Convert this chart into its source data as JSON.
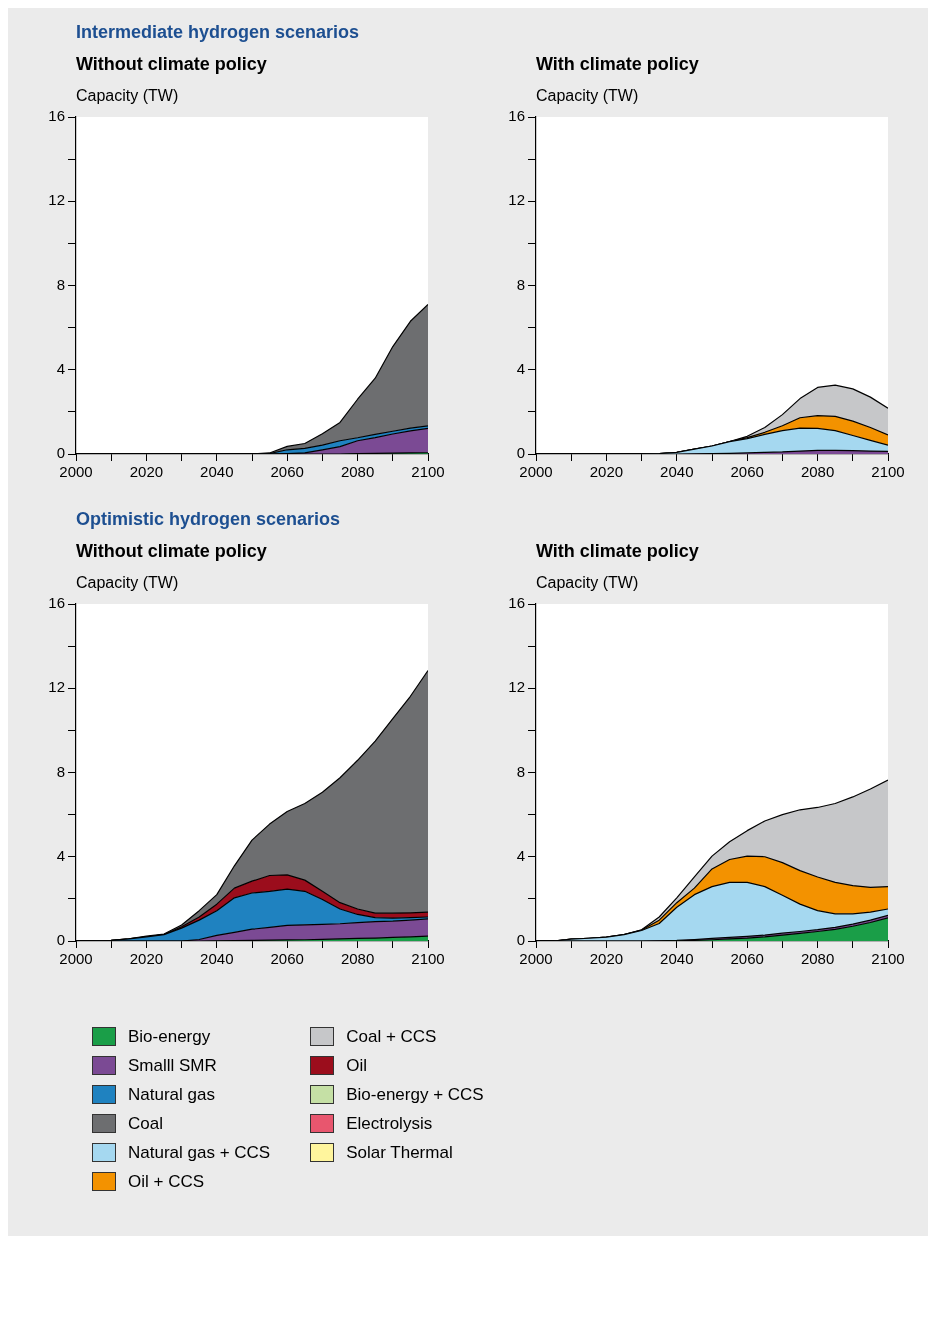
{
  "chart_data": [
    {
      "type": "area",
      "stacked": true,
      "title": "Intermediate hydrogen scenarios",
      "subtitle": "Without climate policy",
      "ylabel": "Capacity (TW)",
      "legend": "bottom",
      "x": [
        2000,
        2005,
        2010,
        2015,
        2020,
        2025,
        2030,
        2035,
        2040,
        2045,
        2050,
        2055,
        2060,
        2065,
        2070,
        2075,
        2080,
        2085,
        2090,
        2095,
        2100
      ],
      "xlim": [
        2000,
        2100
      ],
      "xticks": [
        2000,
        {
          "value": 2010,
          "label": null
        },
        2020,
        {
          "value": 2030,
          "label": null
        },
        2040,
        {
          "value": 2050,
          "label": null
        },
        2060,
        {
          "value": 2070,
          "label": null
        },
        2080,
        {
          "value": 2090,
          "label": null
        },
        2100
      ],
      "ylim": [
        0,
        16
      ],
      "yticks": [
        0,
        {
          "value": 2,
          "label": null
        },
        4,
        {
          "value": 6,
          "label": null
        },
        8,
        {
          "value": 10,
          "label": null
        },
        12,
        {
          "value": 14,
          "label": null
        },
        16
      ],
      "series": [
        {
          "name": "Bio-energy",
          "color": "#1a9e48",
          "values": [
            0,
            0,
            0,
            0,
            0,
            0,
            0,
            0,
            0,
            0,
            0,
            0,
            0,
            0,
            0,
            0,
            0.02,
            0.03,
            0.04,
            0.05,
            0.06
          ]
        },
        {
          "name": "Smalll SMR",
          "color": "#7b4a94",
          "values": [
            0,
            0,
            0,
            0,
            0,
            0,
            0,
            0,
            0,
            0,
            0,
            0,
            0.02,
            0.05,
            0.2,
            0.35,
            0.61,
            0.75,
            0.91,
            1.05,
            1.16
          ]
        },
        {
          "name": "Natural gas",
          "color": "#1f82c0",
          "values": [
            0,
            0,
            0,
            0,
            0,
            0,
            0,
            0,
            0,
            0,
            0,
            0.02,
            0.18,
            0.22,
            0.22,
            0.28,
            0.14,
            0.15,
            0.13,
            0.13,
            0.12
          ]
        },
        {
          "name": "Coal",
          "color": "#6d6e70",
          "values": [
            0,
            0,
            0,
            0,
            0,
            0,
            0,
            0,
            0,
            0,
            0,
            0.03,
            0.16,
            0.23,
            0.54,
            0.87,
            1.83,
            2.67,
            4.02,
            5.07,
            5.76
          ]
        }
      ]
    },
    {
      "type": "area",
      "stacked": true,
      "subtitle": "With climate policy",
      "ylabel": "Capacity (TW)",
      "x": [
        2000,
        2005,
        2010,
        2015,
        2020,
        2025,
        2030,
        2035,
        2040,
        2045,
        2050,
        2055,
        2060,
        2065,
        2070,
        2075,
        2080,
        2085,
        2090,
        2095,
        2100
      ],
      "xlim": [
        2000,
        2100
      ],
      "xticks": [
        2000,
        {
          "value": 2010,
          "label": null
        },
        2020,
        {
          "value": 2030,
          "label": null
        },
        2040,
        {
          "value": 2050,
          "label": null
        },
        2060,
        {
          "value": 2070,
          "label": null
        },
        2080,
        {
          "value": 2090,
          "label": null
        },
        2100
      ],
      "ylim": [
        0,
        16
      ],
      "yticks": [
        0,
        {
          "value": 2,
          "label": null
        },
        4,
        {
          "value": 6,
          "label": null
        },
        8,
        {
          "value": 10,
          "label": null
        },
        12,
        {
          "value": 14,
          "label": null
        },
        16
      ],
      "series": [
        {
          "name": "Smalll SMR",
          "color": "#7b4a94",
          "values": [
            0,
            0,
            0,
            0,
            0,
            0,
            0,
            0,
            0,
            0.01,
            0.02,
            0.03,
            0.05,
            0.08,
            0.1,
            0.14,
            0.17,
            0.17,
            0.16,
            0.14,
            0.12
          ]
        },
        {
          "name": "Natural gas + CCS",
          "color": "#a5d8f0",
          "values": [
            0,
            0,
            0,
            0,
            0,
            0,
            0,
            0.02,
            0.08,
            0.22,
            0.36,
            0.56,
            0.68,
            0.85,
            1.01,
            1.09,
            1.05,
            0.94,
            0.72,
            0.51,
            0.3
          ]
        },
        {
          "name": "Oil + CCS",
          "color": "#f39200",
          "values": [
            0,
            0,
            0,
            0,
            0,
            0,
            0,
            0,
            0,
            0,
            0,
            0,
            0.05,
            0.1,
            0.23,
            0.49,
            0.6,
            0.68,
            0.68,
            0.61,
            0.49
          ]
        },
        {
          "name": "Coal + CCS",
          "color": "#c6c7c9",
          "values": [
            0,
            0,
            0,
            0,
            0,
            0,
            0,
            0,
            0,
            0,
            0,
            0,
            0.06,
            0.23,
            0.53,
            0.91,
            1.34,
            1.48,
            1.53,
            1.44,
            1.26
          ]
        }
      ],
      "legend": "bottom"
    },
    {
      "type": "area",
      "stacked": true,
      "title": "Optimistic hydrogen scenarios",
      "subtitle": "Without climate policy",
      "ylabel": "Capacity (TW)",
      "legend": "bottom",
      "x": [
        2000,
        2005,
        2010,
        2015,
        2020,
        2025,
        2030,
        2035,
        2040,
        2045,
        2050,
        2055,
        2060,
        2065,
        2070,
        2075,
        2080,
        2085,
        2090,
        2095,
        2100
      ],
      "xlim": [
        2000,
        2100
      ],
      "xticks": [
        2000,
        {
          "value": 2010,
          "label": null
        },
        2020,
        {
          "value": 2030,
          "label": null
        },
        2040,
        {
          "value": 2050,
          "label": null
        },
        2060,
        {
          "value": 2070,
          "label": null
        },
        2080,
        {
          "value": 2090,
          "label": null
        },
        2100
      ],
      "ylim": [
        0,
        16
      ],
      "yticks": [
        0,
        {
          "value": 2,
          "label": null
        },
        4,
        {
          "value": 6,
          "label": null
        },
        8,
        {
          "value": 10,
          "label": null
        },
        12,
        {
          "value": 14,
          "label": null
        },
        16
      ],
      "series": [
        {
          "name": "Bio-energy",
          "color": "#1a9e48",
          "values": [
            0,
            0,
            0,
            0,
            0,
            0,
            0,
            0,
            0.01,
            0.02,
            0.03,
            0.04,
            0.05,
            0.06,
            0.08,
            0.1,
            0.12,
            0.14,
            0.17,
            0.2,
            0.23
          ]
        },
        {
          "name": "Smalll SMR",
          "color": "#7b4a94",
          "values": [
            0,
            0,
            0,
            0,
            0,
            0,
            0,
            0.07,
            0.26,
            0.39,
            0.53,
            0.61,
            0.69,
            0.71,
            0.71,
            0.72,
            0.75,
            0.78,
            0.77,
            0.79,
            0.82
          ]
        },
        {
          "name": "Natural gas",
          "color": "#1f82c0",
          "values": [
            0,
            0,
            0.03,
            0.1,
            0.2,
            0.3,
            0.61,
            0.92,
            1.17,
            1.64,
            1.72,
            1.71,
            1.72,
            1.59,
            1.18,
            0.7,
            0.39,
            0.19,
            0.15,
            0.12,
            0.09
          ]
        },
        {
          "name": "Oil",
          "color": "#9b0d1c",
          "values": [
            0,
            0,
            0,
            0,
            0,
            0,
            0.07,
            0.15,
            0.31,
            0.46,
            0.56,
            0.75,
            0.68,
            0.53,
            0.39,
            0.3,
            0.26,
            0.21,
            0.23,
            0.23,
            0.23
          ]
        },
        {
          "name": "Coal",
          "color": "#6d6e70",
          "values": [
            0,
            0,
            0,
            0,
            0.03,
            0.03,
            0.08,
            0.3,
            0.45,
            1.06,
            1.95,
            2.44,
            3.01,
            3.64,
            4.7,
            5.93,
            7.06,
            8.17,
            9.24,
            10.28,
            11.47
          ]
        },
        {
          "name": "Bio-energy + CCS",
          "color": "#c5e0a5",
          "values": [
            null,
            null,
            null,
            null,
            null,
            null,
            null,
            null,
            null,
            null,
            null,
            null,
            null,
            null,
            null,
            null,
            null,
            null,
            null,
            null,
            null
          ]
        },
        {
          "name": "Electrolysis",
          "color": "#e8566e",
          "values": [
            null,
            null,
            null,
            null,
            null,
            null,
            null,
            null,
            null,
            null,
            null,
            null,
            null,
            null,
            null,
            null,
            null,
            null,
            null,
            null,
            null
          ]
        },
        {
          "name": "Solar Thermal",
          "color": "#fff59d",
          "values": [
            null,
            null,
            null,
            null,
            null,
            null,
            null,
            null,
            null,
            null,
            null,
            null,
            null,
            null,
            null,
            null,
            null,
            null,
            null,
            null,
            null
          ]
        }
      ]
    },
    {
      "type": "area",
      "stacked": true,
      "subtitle": "With climate policy",
      "ylabel": "Capacity (TW)",
      "legend": "bottom",
      "x": [
        2000,
        2005,
        2010,
        2015,
        2020,
        2025,
        2030,
        2035,
        2040,
        2045,
        2050,
        2055,
        2060,
        2065,
        2070,
        2075,
        2080,
        2085,
        2090,
        2095,
        2100
      ],
      "xlim": [
        2000,
        2100
      ],
      "xticks": [
        2000,
        {
          "value": 2010,
          "label": null
        },
        2020,
        {
          "value": 2030,
          "label": null
        },
        2040,
        {
          "value": 2050,
          "label": null
        },
        2060,
        {
          "value": 2070,
          "label": null
        },
        2080,
        {
          "value": 2090,
          "label": null
        },
        2100
      ],
      "ylim": [
        0,
        16
      ],
      "yticks": [
        0,
        {
          "value": 2,
          "label": null
        },
        4,
        {
          "value": 6,
          "label": null
        },
        8,
        {
          "value": 10,
          "label": null
        },
        12,
        {
          "value": 14,
          "label": null
        },
        16
      ],
      "series": [
        {
          "name": "Bio-energy",
          "color": "#1a9e48",
          "values": [
            0,
            0,
            0,
            0,
            0,
            0,
            0,
            0,
            0.01,
            0.03,
            0.06,
            0.1,
            0.14,
            0.2,
            0.28,
            0.36,
            0.45,
            0.55,
            0.7,
            0.88,
            1.1
          ]
        },
        {
          "name": "Smalll SMR",
          "color": "#7b4a94",
          "values": [
            0,
            0,
            0,
            0,
            0,
            0,
            0,
            0.01,
            0.02,
            0.04,
            0.06,
            0.07,
            0.08,
            0.08,
            0.09,
            0.09,
            0.09,
            0.1,
            0.1,
            0.11,
            0.12
          ]
        },
        {
          "name": "Natural gas + CCS",
          "color": "#a5d8f0",
          "values": [
            0,
            0,
            0.09,
            0.13,
            0.18,
            0.3,
            0.5,
            0.82,
            1.57,
            2.13,
            2.46,
            2.61,
            2.56,
            2.3,
            1.8,
            1.3,
            0.9,
            0.64,
            0.49,
            0.38,
            0.3
          ]
        },
        {
          "name": "Oil + CCS",
          "color": "#f39200",
          "values": [
            0,
            0,
            0,
            0,
            0,
            0,
            0.02,
            0.16,
            0.22,
            0.31,
            0.84,
            1.09,
            1.25,
            1.42,
            1.55,
            1.59,
            1.6,
            1.49,
            1.34,
            1.18,
            1.06
          ]
        },
        {
          "name": "Coal + CCS",
          "color": "#c6c7c9",
          "values": [
            0,
            0,
            0,
            0,
            0,
            0,
            0.01,
            0.15,
            0.23,
            0.53,
            0.61,
            0.84,
            1.21,
            1.7,
            2.28,
            2.89,
            3.3,
            3.75,
            4.21,
            4.67,
            5.06
          ]
        }
      ]
    }
  ]
}
